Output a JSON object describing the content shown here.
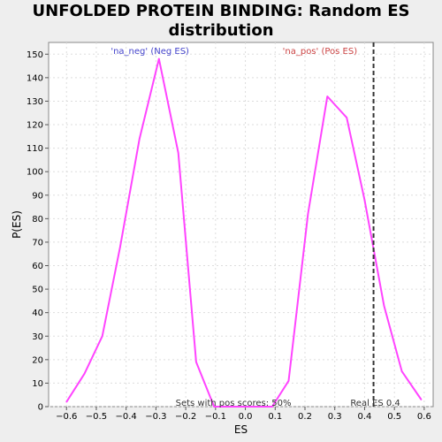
{
  "chart_data": {
    "type": "line",
    "title_line1": "UNFOLDED PROTEIN BINDING: Random ES",
    "title_line2": "distribution",
    "xlabel": "ES",
    "ylabel": "P(ES)",
    "xlim": [
      -0.66,
      0.63
    ],
    "ylim": [
      0,
      155
    ],
    "xticks": [
      -0.6,
      -0.5,
      -0.4,
      -0.3,
      -0.2,
      -0.1,
      0.0,
      0.1,
      0.2,
      0.3,
      0.4,
      0.5,
      0.6
    ],
    "xtick_labels": [
      "−0.6",
      "−0.5",
      "−0.4",
      "−0.3",
      "−0.2",
      "−0.1",
      "0.0",
      "0.1",
      "0.2",
      "0.3",
      "0.4",
      "0.5",
      "0.6"
    ],
    "yticks": [
      0,
      10,
      20,
      30,
      40,
      50,
      60,
      70,
      80,
      90,
      100,
      110,
      120,
      130,
      140,
      150
    ],
    "grid": true,
    "series": [
      {
        "color": "#ff44ff",
        "x": [
          -0.6,
          -0.54,
          -0.48,
          -0.42,
          -0.355,
          -0.29,
          -0.225,
          -0.165,
          -0.105,
          -0.04,
          0.025,
          0.09,
          0.145,
          0.21,
          0.275,
          0.34,
          0.4,
          0.465,
          0.525,
          0.59
        ],
        "y": [
          2,
          14,
          30,
          68,
          114,
          148,
          108,
          19,
          0,
          0,
          0,
          0,
          11,
          82,
          132,
          123,
          88,
          43,
          15,
          3
        ]
      }
    ],
    "real_es": {
      "x": 0.43,
      "label": "Real ES 0.4",
      "color": "#333333"
    },
    "annotations": {
      "neg_label": "'na_neg' (Neg ES)",
      "neg_color": "#4444cc",
      "pos_label": "'na_pos' (Pos ES)",
      "pos_color": "#cc4444",
      "sets_label": "Sets with pos scores: 50%"
    }
  }
}
